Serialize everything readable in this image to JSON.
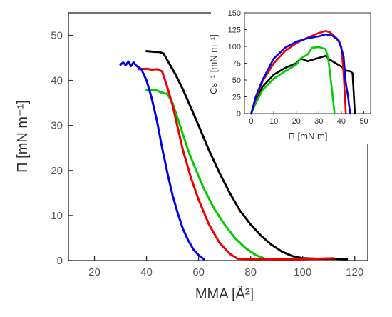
{
  "chart_data": [
    {
      "type": "line",
      "xlabel": "MMA [Å²]",
      "ylabel": "Π [mN m⁻¹]",
      "xlim": [
        10,
        125
      ],
      "ylim": [
        0,
        55
      ],
      "xticks": [
        20,
        40,
        60,
        80,
        100,
        120
      ],
      "yticks": [
        0,
        10,
        20,
        30,
        40,
        50
      ],
      "grid": false,
      "series": [
        {
          "color": "#000000",
          "x": [
            117,
            112,
            106,
            100,
            96,
            92,
            88,
            84,
            80,
            76,
            72,
            68,
            64,
            60,
            57,
            54,
            51,
            48,
            46.5,
            45,
            42,
            40
          ],
          "y": [
            0.3,
            0.4,
            0.4,
            0.5,
            1.0,
            2.0,
            3.5,
            5.5,
            8.0,
            11.0,
            15.0,
            19.5,
            24.5,
            30.0,
            34.0,
            38.0,
            41.5,
            44.5,
            46.0,
            46.3,
            46.4,
            46.5
          ]
        },
        {
          "color": "#00cc00",
          "x": [
            86,
            82,
            78,
            74,
            70,
            66,
            62,
            58,
            56,
            54,
            52,
            50,
            48,
            46,
            45,
            44,
            42,
            40
          ],
          "y": [
            0.3,
            1.2,
            2.8,
            5.0,
            8.0,
            11.5,
            16.0,
            21.5,
            24.5,
            28.0,
            31.5,
            35.0,
            37.0,
            37.3,
            37.5,
            37.8,
            37.8,
            37.8
          ]
        },
        {
          "color": "#ee0000",
          "x": [
            112,
            105,
            95,
            85,
            75,
            72,
            68,
            64,
            60,
            57,
            54,
            52,
            50,
            48,
            46,
            44,
            42,
            40,
            37
          ],
          "y": [
            0.5,
            0.4,
            0.3,
            0.3,
            0.4,
            1.5,
            4.0,
            8.0,
            13.5,
            18.5,
            24.5,
            29.5,
            34.5,
            38.5,
            42.0,
            42.5,
            42.4,
            42.6,
            42.5
          ]
        },
        {
          "color": "#0000ee",
          "x": [
            62,
            60,
            58,
            56,
            54,
            52,
            50,
            48,
            46,
            44,
            42,
            40,
            38,
            36,
            35,
            34,
            33,
            32,
            31,
            30
          ],
          "y": [
            0.3,
            1.2,
            2.5,
            4.5,
            7.0,
            10.5,
            14.5,
            19.5,
            25.0,
            31.0,
            36.0,
            40.0,
            42.5,
            43.3,
            44.0,
            43.2,
            44.2,
            43.4,
            44.0,
            43.5
          ]
        }
      ]
    },
    {
      "type": "line",
      "xlabel": "Π [mN m]",
      "ylabel": "Cs⁻¹ [mN m⁻¹]",
      "xlim": [
        -3,
        53
      ],
      "ylim": [
        0,
        150
      ],
      "xticks": [
        0,
        10,
        20,
        30,
        40,
        50
      ],
      "yticks": [
        0,
        25,
        50,
        75,
        100,
        125,
        150
      ],
      "grid": false,
      "series": [
        {
          "color": "#000000",
          "x": [
            0,
            2,
            5,
            10,
            15,
            20,
            22,
            25,
            30,
            33,
            35,
            40,
            42,
            44,
            45,
            45.5,
            46
          ],
          "y": [
            0,
            20,
            40,
            58,
            68,
            75,
            82,
            78,
            83,
            86,
            80,
            70,
            64,
            63,
            60,
            30,
            0
          ]
        },
        {
          "color": "#00cc00",
          "x": [
            0,
            2,
            5,
            10,
            15,
            20,
            22,
            25,
            27,
            30,
            33,
            34,
            35,
            36,
            37
          ],
          "y": [
            0,
            15,
            35,
            52,
            63,
            73,
            82,
            88,
            98,
            99,
            96,
            85,
            60,
            30,
            0
          ]
        },
        {
          "color": "#ee0000",
          "x": [
            0,
            2,
            5,
            10,
            15,
            20,
            25,
            30,
            33,
            35,
            38,
            40,
            41,
            42
          ],
          "y": [
            0,
            22,
            48,
            75,
            93,
            105,
            113,
            120,
            123,
            121,
            112,
            100,
            60,
            0
          ]
        },
        {
          "color": "#0000ee",
          "x": [
            0,
            2,
            5,
            10,
            15,
            20,
            25,
            30,
            33,
            36,
            39,
            41,
            42,
            43,
            43.5,
            44
          ],
          "y": [
            0,
            25,
            50,
            82,
            98,
            107,
            112,
            115,
            118,
            116,
            108,
            85,
            45,
            25,
            10,
            0
          ]
        }
      ]
    }
  ]
}
